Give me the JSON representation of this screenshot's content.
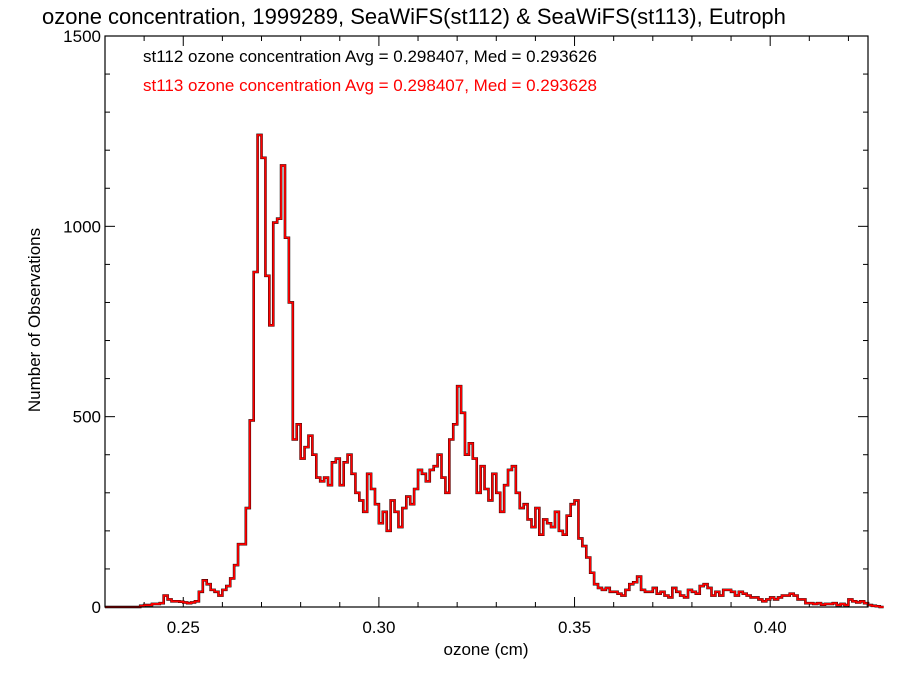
{
  "chart_data": {
    "type": "histogram",
    "title": "ozone concentration, 1999289, SeaWiFS(st112) & SeaWiFS(st113), Eutroph",
    "xlabel": "ozone (cm)",
    "ylabel": "Number of Observations",
    "xlim": [
      0.23,
      0.425
    ],
    "ylim": [
      0,
      1500
    ],
    "xticks": [
      0.25,
      0.3,
      0.35,
      0.4
    ],
    "xtick_labels": [
      "0.25",
      "0.30",
      "0.35",
      "0.40"
    ],
    "yticks": [
      0,
      500,
      1000,
      1500
    ],
    "ytick_labels": [
      "0",
      "500",
      "1000",
      "1500"
    ],
    "grid": false,
    "bin_width": 0.001,
    "bin_start": 0.23,
    "series": [
      {
        "name": "st112",
        "color": "#000000",
        "annotation": "st112 ozone concentration Avg = 0.298407, Med = 0.293626",
        "values": [
          0,
          0,
          0,
          0,
          0,
          0,
          0,
          0,
          0,
          3,
          5,
          5,
          8,
          8,
          10,
          30,
          20,
          15,
          15,
          14,
          12,
          10,
          12,
          15,
          40,
          70,
          60,
          45,
          40,
          30,
          45,
          55,
          75,
          110,
          165,
          165,
          260,
          490,
          880,
          1240,
          1180,
          870,
          740,
          1010,
          1020,
          1160,
          970,
          800,
          440,
          480,
          390,
          420,
          450,
          400,
          340,
          330,
          340,
          320,
          380,
          390,
          320,
          380,
          400,
          350,
          300,
          280,
          250,
          350,
          310,
          270,
          220,
          250,
          200,
          280,
          250,
          210,
          260,
          290,
          270,
          310,
          360,
          350,
          330,
          360,
          370,
          400,
          340,
          300,
          440,
          480,
          580,
          510,
          400,
          430,
          390,
          300,
          370,
          310,
          280,
          350,
          300,
          250,
          320,
          360,
          370,
          300,
          260,
          270,
          230,
          210,
          260,
          190,
          230,
          220,
          210,
          250,
          200,
          190,
          240,
          270,
          280,
          180,
          160,
          130,
          90,
          60,
          50,
          45,
          50,
          40,
          40,
          35,
          30,
          45,
          60,
          65,
          80,
          45,
          40,
          40,
          50,
          35,
          40,
          30,
          25,
          50,
          40,
          30,
          25,
          45,
          40,
          35,
          55,
          60,
          50,
          30,
          40,
          30,
          45,
          45,
          40,
          30,
          40,
          35,
          30,
          25,
          25,
          20,
          15,
          20,
          25,
          20,
          25,
          30,
          30,
          35,
          30,
          20,
          20,
          10,
          10,
          8,
          10,
          6,
          8,
          8,
          10,
          5,
          8,
          5,
          20,
          15,
          12,
          15,
          10,
          5,
          3,
          2,
          0
        ]
      },
      {
        "name": "st113",
        "color": "#ff0000",
        "annotation": "st113 ozone concentration Avg = 0.298407, Med = 0.293628",
        "values": [
          0,
          0,
          0,
          0,
          0,
          0,
          0,
          0,
          0,
          3,
          5,
          5,
          8,
          8,
          10,
          30,
          20,
          15,
          15,
          14,
          12,
          10,
          12,
          15,
          40,
          70,
          60,
          45,
          40,
          30,
          45,
          55,
          75,
          110,
          165,
          165,
          260,
          490,
          880,
          1240,
          1180,
          870,
          740,
          1010,
          1020,
          1160,
          970,
          800,
          440,
          480,
          390,
          420,
          450,
          400,
          340,
          330,
          340,
          320,
          380,
          390,
          320,
          380,
          400,
          350,
          300,
          280,
          250,
          350,
          310,
          270,
          220,
          250,
          200,
          280,
          250,
          210,
          260,
          290,
          270,
          310,
          360,
          350,
          330,
          360,
          370,
          400,
          340,
          300,
          440,
          480,
          580,
          510,
          400,
          430,
          390,
          300,
          370,
          310,
          280,
          350,
          300,
          250,
          320,
          360,
          370,
          300,
          260,
          270,
          230,
          210,
          260,
          190,
          230,
          220,
          210,
          250,
          200,
          190,
          240,
          270,
          280,
          180,
          160,
          130,
          90,
          60,
          50,
          45,
          50,
          40,
          40,
          35,
          30,
          45,
          60,
          65,
          80,
          45,
          40,
          40,
          50,
          35,
          40,
          30,
          25,
          50,
          40,
          30,
          25,
          45,
          40,
          35,
          55,
          60,
          50,
          30,
          40,
          30,
          45,
          45,
          40,
          30,
          40,
          35,
          30,
          25,
          25,
          20,
          15,
          20,
          25,
          20,
          25,
          30,
          30,
          35,
          30,
          20,
          20,
          10,
          10,
          8,
          10,
          6,
          8,
          8,
          10,
          5,
          8,
          5,
          20,
          15,
          12,
          15,
          10,
          5,
          3,
          2,
          0
        ]
      }
    ]
  }
}
